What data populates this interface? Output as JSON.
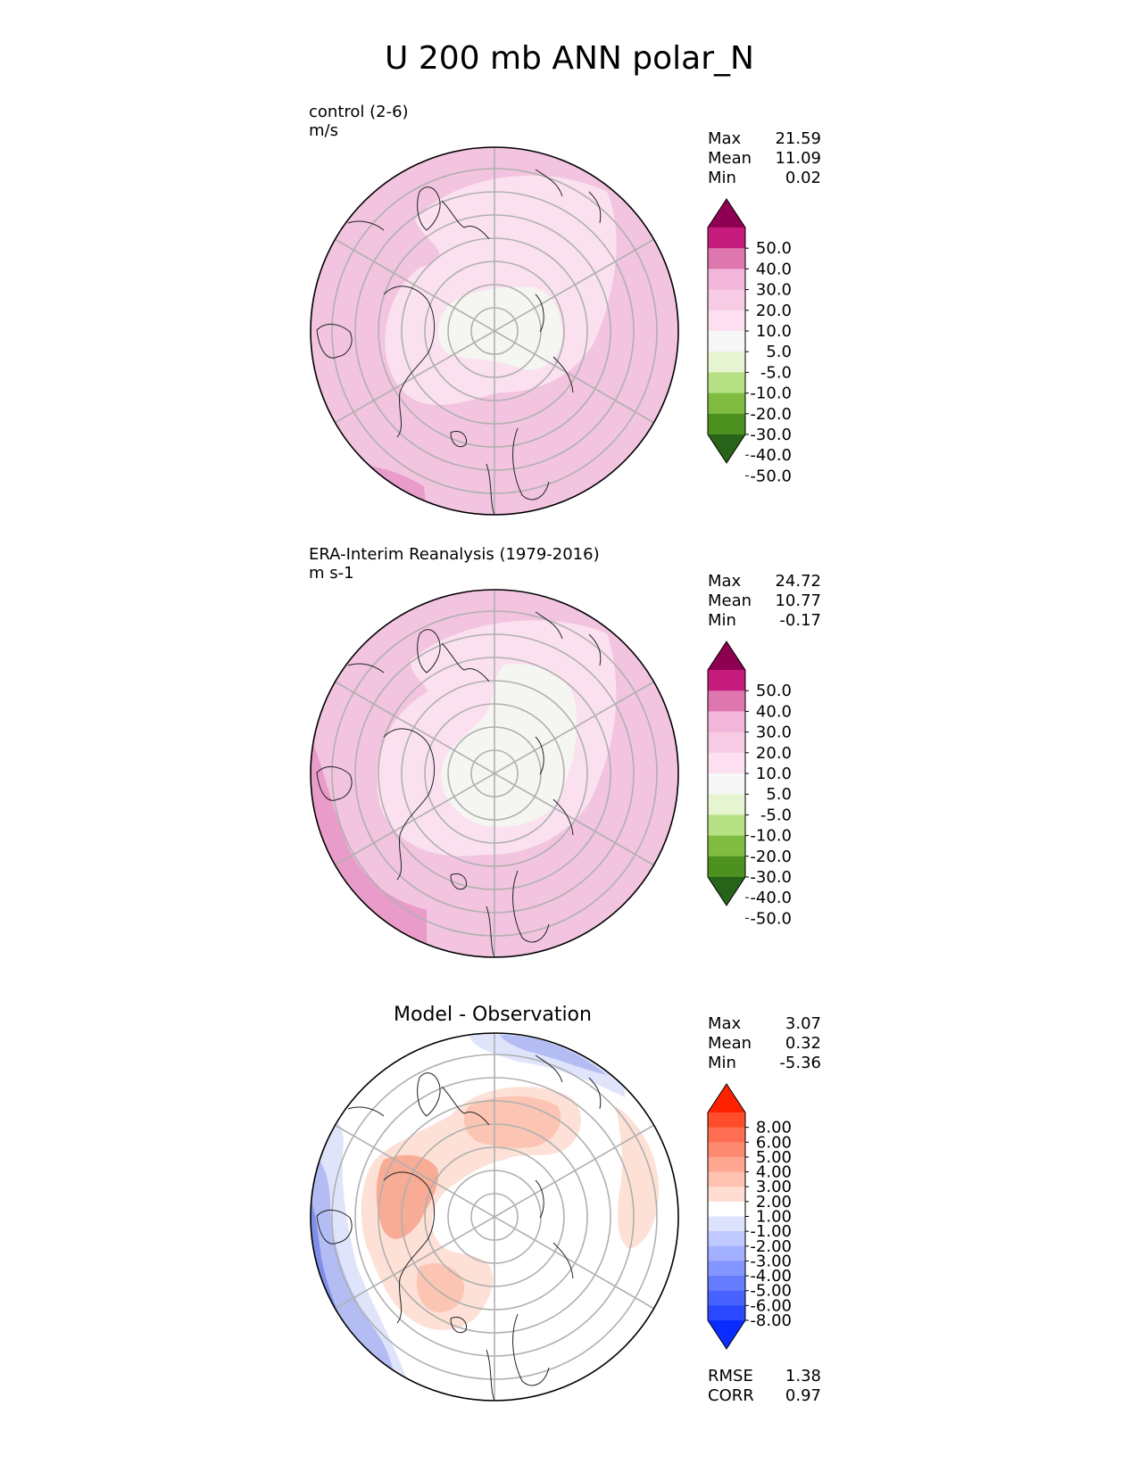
{
  "figure": {
    "title": "U 200 mb ANN polar_N"
  },
  "panels": [
    {
      "id": "test",
      "label": "control (2-6)",
      "units": "m/s",
      "stats": [
        {
          "name": "Max",
          "value": "21.59"
        },
        {
          "name": "Mean",
          "value": "11.09"
        },
        {
          "name": "Min",
          "value": "0.02"
        }
      ],
      "colorbar": {
        "ticks": [
          "50.0",
          "40.0",
          "30.0",
          "20.0",
          "10.0",
          "5.0",
          "-5.0",
          "-10.0",
          "-20.0",
          "-30.0",
          "-40.0",
          "-50.0"
        ],
        "colors": [
          "#8e0152",
          "#c51b7d",
          "#de77ae",
          "#f1b6da",
          "#f6cbe3",
          "#fde0ef",
          "#f7f7f7",
          "#e6f5d0",
          "#b8e186",
          "#7fbc41",
          "#4d9221",
          "#276419"
        ]
      },
      "field": {
        "background": "#f2c4df",
        "regions": [
          {
            "name": "inner-10-20",
            "color": "#fbe1ef"
          },
          {
            "name": "core-5",
            "color": "#f5f5f2"
          },
          {
            "name": "edge-20-30",
            "color": "#e99cc9"
          }
        ]
      }
    },
    {
      "id": "ref",
      "label": "ERA-Interim Reanalysis (1979-2016)",
      "units": "m s-1",
      "stats": [
        {
          "name": "Max",
          "value": "24.72"
        },
        {
          "name": "Mean",
          "value": "10.77"
        },
        {
          "name": "Min",
          "value": "-0.17"
        }
      ],
      "colorbar": {
        "ticks": [
          "50.0",
          "40.0",
          "30.0",
          "20.0",
          "10.0",
          "5.0",
          "-5.0",
          "-10.0",
          "-20.0",
          "-30.0",
          "-40.0",
          "-50.0"
        ],
        "colors": [
          "#8e0152",
          "#c51b7d",
          "#de77ae",
          "#f1b6da",
          "#f6cbe3",
          "#fde0ef",
          "#f7f7f7",
          "#e6f5d0",
          "#b8e186",
          "#7fbc41",
          "#4d9221",
          "#276419"
        ]
      },
      "field": {
        "background": "#f2c4df",
        "regions": [
          {
            "name": "inner-10-20",
            "color": "#fbe1ef"
          },
          {
            "name": "core-5",
            "color": "#f5f5f2"
          },
          {
            "name": "edge-20-30",
            "color": "#e99cc9"
          }
        ]
      }
    },
    {
      "id": "diff",
      "label": "Model - Observation",
      "units": "",
      "stats": [
        {
          "name": "Max",
          "value": "3.07"
        },
        {
          "name": "Mean",
          "value": "0.32"
        },
        {
          "name": "Min",
          "value": "-5.36"
        }
      ],
      "colorbar": {
        "ticks": [
          "8.00",
          "6.00",
          "5.00",
          "4.00",
          "3.00",
          "2.00",
          "1.00",
          "-1.00",
          "-2.00",
          "-3.00",
          "-4.00",
          "-5.00",
          "-6.00",
          "-8.00"
        ],
        "colors": [
          "#ff2200",
          "#ff4d2b",
          "#ff6e52",
          "#ff8a72",
          "#ffa690",
          "#ffc2b0",
          "#ffddd2",
          "#ffffff",
          "#dde3ff",
          "#bfc9ff",
          "#a2b0ff",
          "#8496ff",
          "#667cff",
          "#4862ff",
          "#2a48ff",
          "#0a2cff"
        ]
      },
      "field": {
        "background": "#ffffff",
        "regions": [
          {
            "name": "pos-1-2",
            "color": "#fde0d6"
          },
          {
            "name": "pos-2-3",
            "color": "#fcc5b3"
          },
          {
            "name": "pos-3-4",
            "color": "#f8ab95"
          },
          {
            "name": "neg-1-2",
            "color": "#dfe4fb"
          },
          {
            "name": "neg-2-4",
            "color": "#b3bdf3"
          },
          {
            "name": "neg-4-6",
            "color": "#7f8ee8"
          }
        ]
      },
      "metrics": [
        {
          "name": "RMSE",
          "value": "1.38"
        },
        {
          "name": "CORR",
          "value": "0.97"
        }
      ]
    }
  ],
  "chart_data": {
    "type": "heatmap",
    "projection": "north polar stereographic",
    "title": "U 200 mb ANN polar_N",
    "variable": "U",
    "level": "200 mb",
    "season": "ANN",
    "region": "polar_N",
    "contour_levels_main": [
      -50,
      -40,
      -30,
      -20,
      -10,
      -5,
      5,
      10,
      20,
      30,
      40,
      50
    ],
    "contour_levels_diff": [
      -8,
      -6,
      -5,
      -4,
      -3,
      -2,
      -1,
      1,
      2,
      3,
      4,
      5,
      6,
      8
    ],
    "series": [
      {
        "name": "control (2-6)",
        "units": "m/s",
        "max": 21.59,
        "mean": 11.09,
        "min": 0.02
      },
      {
        "name": "ERA-Interim Reanalysis (1979-2016)",
        "units": "m s-1",
        "max": 24.72,
        "mean": 10.77,
        "min": -0.17
      },
      {
        "name": "Model - Observation",
        "max": 3.07,
        "mean": 0.32,
        "min": -5.36,
        "rmse": 1.38,
        "corr": 0.97
      }
    ]
  }
}
